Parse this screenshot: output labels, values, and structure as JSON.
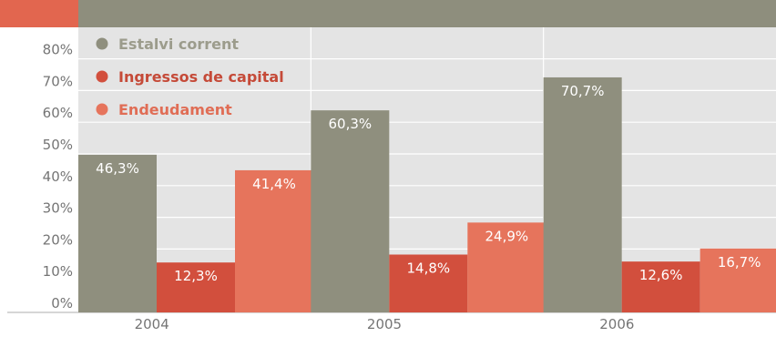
{
  "chart_data": {
    "type": "bar",
    "categories": [
      "2004",
      "2005",
      "2006"
    ],
    "series": [
      {
        "name": "Estalvi corrent",
        "values": [
          46.3,
          60.3,
          70.7
        ],
        "labels": [
          "46,3%",
          "60,3%",
          "70,7%"
        ]
      },
      {
        "name": "Ingressos de capital",
        "values": [
          12.3,
          14.8,
          12.6
        ],
        "labels": [
          "12,3%",
          "14,8%",
          "12,6%"
        ]
      },
      {
        "name": "Endeudament",
        "values": [
          41.4,
          24.9,
          16.7
        ],
        "labels": [
          "41,4%",
          "24,9%",
          "16,7%"
        ]
      }
    ],
    "y_ticks": [
      "0%",
      "10%",
      "20%",
      "30%",
      "40%",
      "50%",
      "60%",
      "70%",
      "80%"
    ],
    "ylim": [
      0,
      85
    ],
    "legend_position": "top-left",
    "grid": true
  },
  "colors": {
    "background": "#e4e4e4",
    "header": "#8e8e7d",
    "header_accent": "#e2664f",
    "grid": "#ffffff",
    "axis_text": "#757575",
    "series": [
      "#8f8f7e",
      "#d24f3d",
      "#e6745c"
    ],
    "legend_text": [
      "#9c9c8c",
      "#c54a38",
      "#e06d55"
    ]
  }
}
